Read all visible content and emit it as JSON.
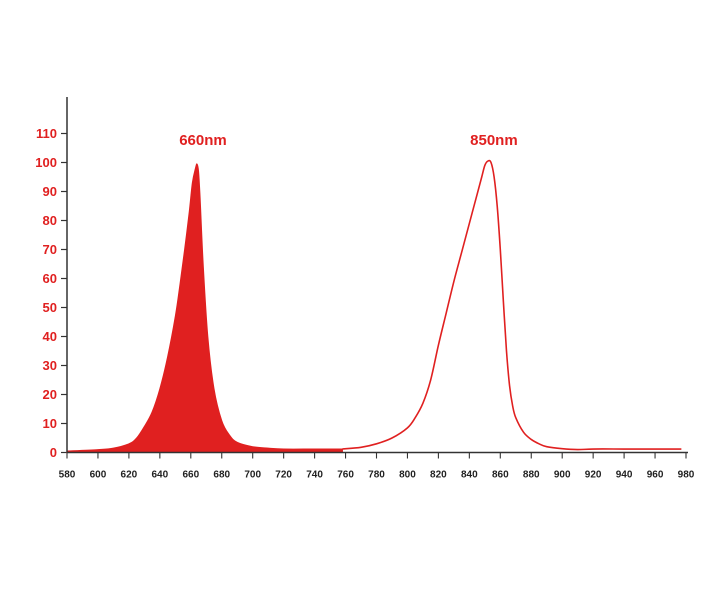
{
  "chart_data": {
    "type": "line",
    "title": "",
    "xlabel": "",
    "ylabel": "",
    "xlim": [
      580,
      980
    ],
    "ylim": [
      0,
      110
    ],
    "grid": false,
    "x_ticks": [
      "580",
      "600",
      "620",
      "640",
      "660",
      "680",
      "700",
      "720",
      "740",
      "760",
      "780",
      "800",
      "820",
      "840",
      "860",
      "880",
      "900",
      "920",
      "940",
      "960",
      "980"
    ],
    "y_ticks": [
      "0",
      "10",
      "20",
      "30",
      "40",
      "50",
      "60",
      "70",
      "80",
      "90",
      "100",
      "110"
    ],
    "annotations": [
      "660nm",
      "850nm"
    ],
    "colors": {
      "accent": "#e02020",
      "axis": "#333333",
      "xtick_text": "#222222"
    },
    "series": [
      {
        "style": "filled",
        "x": [
          580,
          600,
          610,
          620,
          625,
          630,
          635,
          640,
          645,
          650,
          653,
          656,
          659,
          661,
          663,
          664,
          665,
          666,
          668,
          671,
          675,
          680,
          685,
          690,
          700,
          710,
          720,
          740,
          758
        ],
        "y": [
          0.5,
          1,
          1.5,
          3,
          5,
          9,
          14,
          22,
          33,
          47,
          58,
          70,
          83,
          93,
          98,
          99.5,
          97,
          88,
          65,
          40,
          22,
          11,
          6,
          3.5,
          2,
          1.5,
          1.2,
          1.2,
          1.2
        ]
      },
      {
        "style": "line",
        "x": [
          758,
          770,
          780,
          790,
          800,
          805,
          810,
          815,
          820,
          825,
          830,
          835,
          840,
          845,
          848,
          850,
          852,
          854,
          856,
          858,
          860,
          862,
          864,
          866,
          868,
          870,
          875,
          880,
          885,
          890,
          900,
          910,
          920,
          940,
          960,
          977
        ],
        "y": [
          1.2,
          1.8,
          3,
          5,
          8.5,
          12,
          17,
          25,
          37,
          48,
          59,
          69,
          79,
          89,
          95,
          99,
          100.5,
          100,
          95,
          85,
          70,
          52,
          35,
          23,
          16,
          12,
          7,
          4.5,
          3,
          2,
          1.3,
          1,
          1.2,
          1.2,
          1.2,
          1.2
        ]
      }
    ]
  }
}
